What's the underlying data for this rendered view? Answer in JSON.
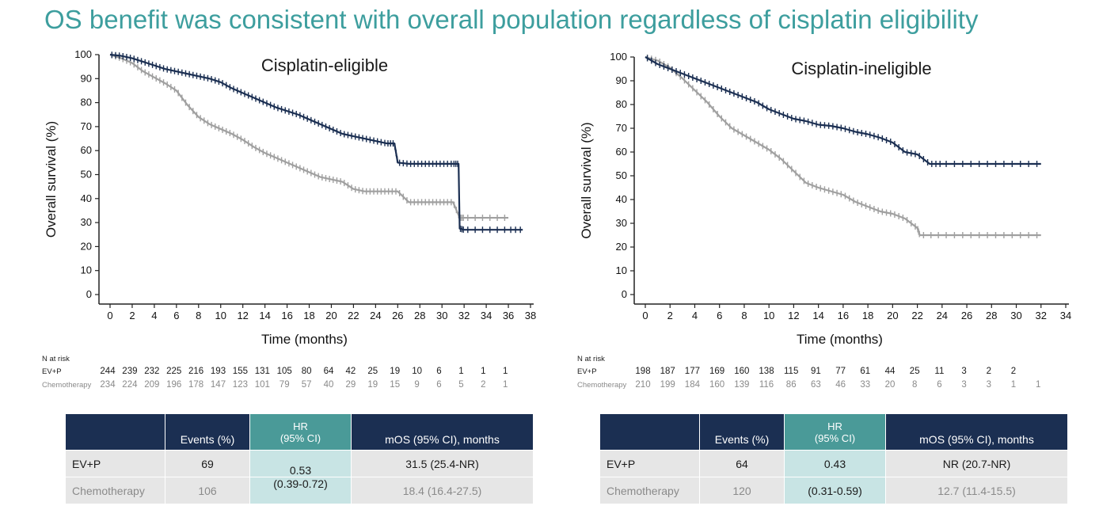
{
  "slide_title": "OS benefit was consistent with overall population regardless of cisplatin eligibility",
  "colors": {
    "ev_p": "#1b2f52",
    "chemo": "#a0a0a0",
    "title": "#3d9e9e",
    "table_header": "#1b2f52",
    "hr_header": "#4a9a98",
    "hr_cell": "#c8e4e4",
    "row_bg": "#e6e6e6"
  },
  "chart_data": [
    {
      "type": "line",
      "title": "Cisplatin-eligible",
      "xlabel": "Time (months)",
      "ylabel": "Overall survival (%)",
      "xlim": [
        0,
        38
      ],
      "ylim": [
        0,
        100
      ],
      "xticks": [
        0,
        2,
        4,
        6,
        8,
        10,
        12,
        14,
        16,
        18,
        20,
        22,
        24,
        26,
        28,
        30,
        32,
        34,
        36,
        38
      ],
      "yticks": [
        0,
        10,
        20,
        30,
        40,
        50,
        60,
        70,
        80,
        90,
        100
      ],
      "series": [
        {
          "name": "EV+P",
          "color": "#1b2f52",
          "x": [
            0,
            1,
            2,
            3,
            4,
            5,
            6,
            7,
            8,
            9,
            10,
            11,
            12,
            13,
            14,
            15,
            16,
            17,
            18,
            19,
            20,
            21,
            22,
            23,
            24,
            25,
            25.7,
            26,
            27,
            28,
            29,
            30,
            31,
            31.5,
            31.6,
            32,
            34,
            36,
            37.3
          ],
          "y": [
            100,
            99.5,
            98.5,
            97,
            95.5,
            94,
            93,
            92,
            91,
            90,
            88.5,
            86,
            84,
            82,
            80,
            78,
            76.5,
            75,
            73,
            71,
            69,
            67,
            66,
            65,
            64,
            63,
            63,
            55,
            54.5,
            54.5,
            54.5,
            54.5,
            54.5,
            54.5,
            27.5,
            27,
            27,
            27,
            27
          ]
        },
        {
          "name": "Chemotherapy",
          "color": "#a0a0a0",
          "x": [
            0,
            1,
            2,
            3,
            4,
            5,
            6,
            7,
            8,
            9,
            10,
            11,
            12,
            13,
            14,
            15,
            16,
            17,
            18,
            19,
            20,
            21,
            22,
            23,
            24,
            25,
            26,
            27,
            28,
            29,
            30,
            31,
            31.6,
            32,
            34,
            36
          ],
          "y": [
            100,
            98.5,
            96.5,
            93,
            90.5,
            88,
            85,
            79,
            74,
            71,
            69,
            67,
            64.5,
            61.5,
            59,
            57,
            55,
            53,
            51,
            49,
            48,
            47,
            44,
            43,
            43,
            43,
            43,
            38.5,
            38.5,
            38.5,
            38.5,
            38.5,
            32,
            32,
            32,
            32
          ]
        }
      ],
      "at_risk_header": "N at risk",
      "at_risk": [
        {
          "name": "EV+P",
          "values": [
            "244",
            "239",
            "232",
            "225",
            "216",
            "193",
            "155",
            "131",
            "105",
            "80",
            "64",
            "42",
            "25",
            "19",
            "10",
            "6",
            "1",
            "1",
            "1"
          ]
        },
        {
          "name": "Chemotherapy",
          "values": [
            "234",
            "224",
            "209",
            "196",
            "178",
            "147",
            "123",
            "101",
            "79",
            "57",
            "40",
            "29",
            "19",
            "15",
            "9",
            "6",
            "5",
            "2",
            "1"
          ]
        }
      ]
    },
    {
      "type": "line",
      "title": "Cisplatin-ineligible",
      "xlabel": "Time (months)",
      "ylabel": "Overall survival (%)",
      "xlim": [
        0,
        34
      ],
      "ylim": [
        0,
        100
      ],
      "xticks": [
        0,
        2,
        4,
        6,
        8,
        10,
        12,
        14,
        16,
        18,
        20,
        22,
        24,
        26,
        28,
        30,
        32,
        34
      ],
      "yticks": [
        0,
        10,
        20,
        30,
        40,
        50,
        60,
        70,
        80,
        90,
        100
      ],
      "series": [
        {
          "name": "EV+P",
          "color": "#1b2f52",
          "x": [
            0,
            1,
            2,
            3,
            4,
            5,
            6,
            7,
            8,
            9,
            10,
            11,
            12,
            13,
            14,
            15,
            16,
            17,
            18,
            19,
            20,
            21,
            22,
            23,
            24,
            26,
            28,
            30,
            32
          ],
          "y": [
            100,
            97,
            95,
            93,
            91,
            89,
            87,
            85,
            83,
            81,
            78,
            76,
            74,
            73,
            71.5,
            71,
            70,
            68.5,
            67.5,
            66,
            64,
            60,
            59,
            55,
            55,
            55,
            55,
            55,
            55
          ]
        },
        {
          "name": "Chemotherapy",
          "color": "#a0a0a0",
          "x": [
            0,
            1,
            2,
            3,
            4,
            5,
            6,
            7,
            8,
            9,
            10,
            11,
            12,
            13,
            14,
            15,
            16,
            17,
            18,
            19,
            20,
            21,
            22,
            22.2,
            24,
            26,
            28,
            30,
            32
          ],
          "y": [
            100,
            98.5,
            95.5,
            91,
            86,
            81,
            75,
            70,
            67,
            64,
            61,
            57,
            52,
            47,
            45,
            43.5,
            42,
            39,
            37,
            35,
            34,
            32,
            28,
            25,
            25,
            25,
            25,
            25,
            25
          ]
        }
      ],
      "at_risk_header": "N at risk",
      "at_risk": [
        {
          "name": "EV+P",
          "values": [
            "198",
            "187",
            "177",
            "169",
            "160",
            "138",
            "115",
            "91",
            "77",
            "61",
            "44",
            "25",
            "11",
            "3",
            "2",
            "2"
          ]
        },
        {
          "name": "Chemotherapy",
          "values": [
            "210",
            "199",
            "184",
            "160",
            "139",
            "116",
            "86",
            "63",
            "46",
            "33",
            "20",
            "8",
            "6",
            "3",
            "3",
            "1",
            "1"
          ]
        }
      ]
    }
  ],
  "tables": [
    {
      "headers": {
        "events": "Events (%)",
        "hr_line1": "HR",
        "hr_line2": "(95% CI)",
        "mos": "mOS (95% CI), months"
      },
      "rows": [
        {
          "label": "EV+P",
          "events": "69",
          "mos": "31.5 (25.4-NR)"
        },
        {
          "label": "Chemotherapy",
          "events": "106",
          "mos": "18.4 (16.4-27.5)"
        }
      ],
      "hr_value": "0.53",
      "hr_ci": "(0.39-0.72)"
    },
    {
      "headers": {
        "events": "Events (%)",
        "hr_line1": "HR",
        "hr_line2": "(95% CI)",
        "mos": "mOS (95% CI), months"
      },
      "rows": [
        {
          "label": "EV+P",
          "events": "64",
          "mos": "NR (20.7-NR)"
        },
        {
          "label": "Chemotherapy",
          "events": "120",
          "mos": "12.7 (11.4-15.5)"
        }
      ],
      "hr_value": "0.43",
      "hr_ci": "(0.31-0.59)"
    }
  ]
}
